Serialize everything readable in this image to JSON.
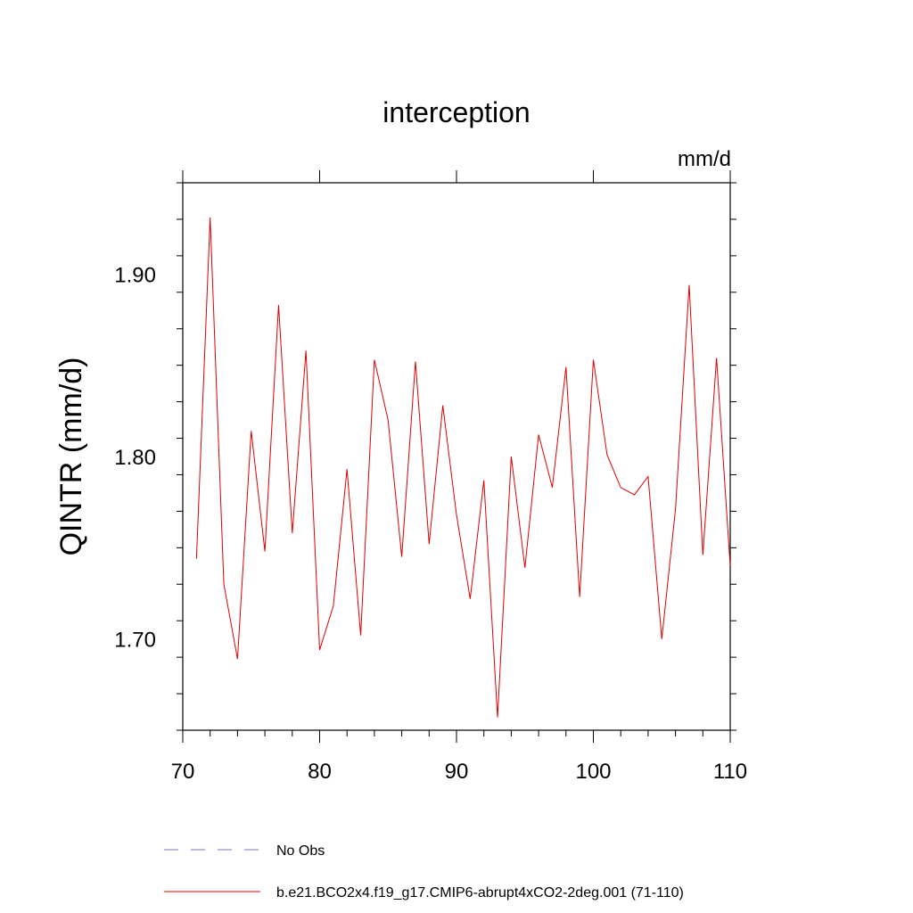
{
  "chart_data": {
    "type": "line",
    "title": "interception",
    "units": "mm/d",
    "ylabel": "QINTR  (mm/d)",
    "xlim": [
      70,
      110
    ],
    "ylim": [
      1.65,
      1.95
    ],
    "xticks": [
      70,
      80,
      90,
      100,
      110
    ],
    "xtick_labels": [
      "70",
      "80",
      "90",
      "100",
      "110"
    ],
    "yticks": [
      1.7,
      1.8,
      1.9
    ],
    "ytick_labels": [
      "1.70",
      "1.80",
      "1.90"
    ],
    "grid": false,
    "legend_position": "bottom-left",
    "series": [
      {
        "name": "b.e21.BCO2x4.f19_g17.CMIP6-abrupt4xCO2-2deg.001 (71-110)",
        "color": "#e00000",
        "style": "solid",
        "x": [
          71,
          72,
          73,
          74,
          75,
          76,
          77,
          78,
          79,
          80,
          81,
          82,
          83,
          84,
          85,
          86,
          87,
          88,
          89,
          90,
          91,
          92,
          93,
          94,
          95,
          96,
          97,
          98,
          99,
          100,
          101,
          102,
          103,
          104,
          105,
          106,
          107,
          108,
          109,
          110
        ],
        "y": [
          1.744,
          1.931,
          1.73,
          1.689,
          1.814,
          1.748,
          1.883,
          1.758,
          1.858,
          1.694,
          1.718,
          1.793,
          1.702,
          1.853,
          1.82,
          1.745,
          1.852,
          1.752,
          1.828,
          1.768,
          1.722,
          1.787,
          1.657,
          1.8,
          1.739,
          1.812,
          1.783,
          1.849,
          1.723,
          1.853,
          1.801,
          1.783,
          1.779,
          1.789,
          1.7,
          1.771,
          1.894,
          1.746,
          1.854,
          1.74
        ]
      }
    ],
    "legend": [
      {
        "label": "No Obs",
        "color": "#7777bb",
        "style": "dashed"
      },
      {
        "label": "b.e21.BCO2x4.f19_g17.CMIP6-abrupt4xCO2-2deg.001 (71-110)",
        "color": "#e00000",
        "style": "solid"
      }
    ]
  }
}
